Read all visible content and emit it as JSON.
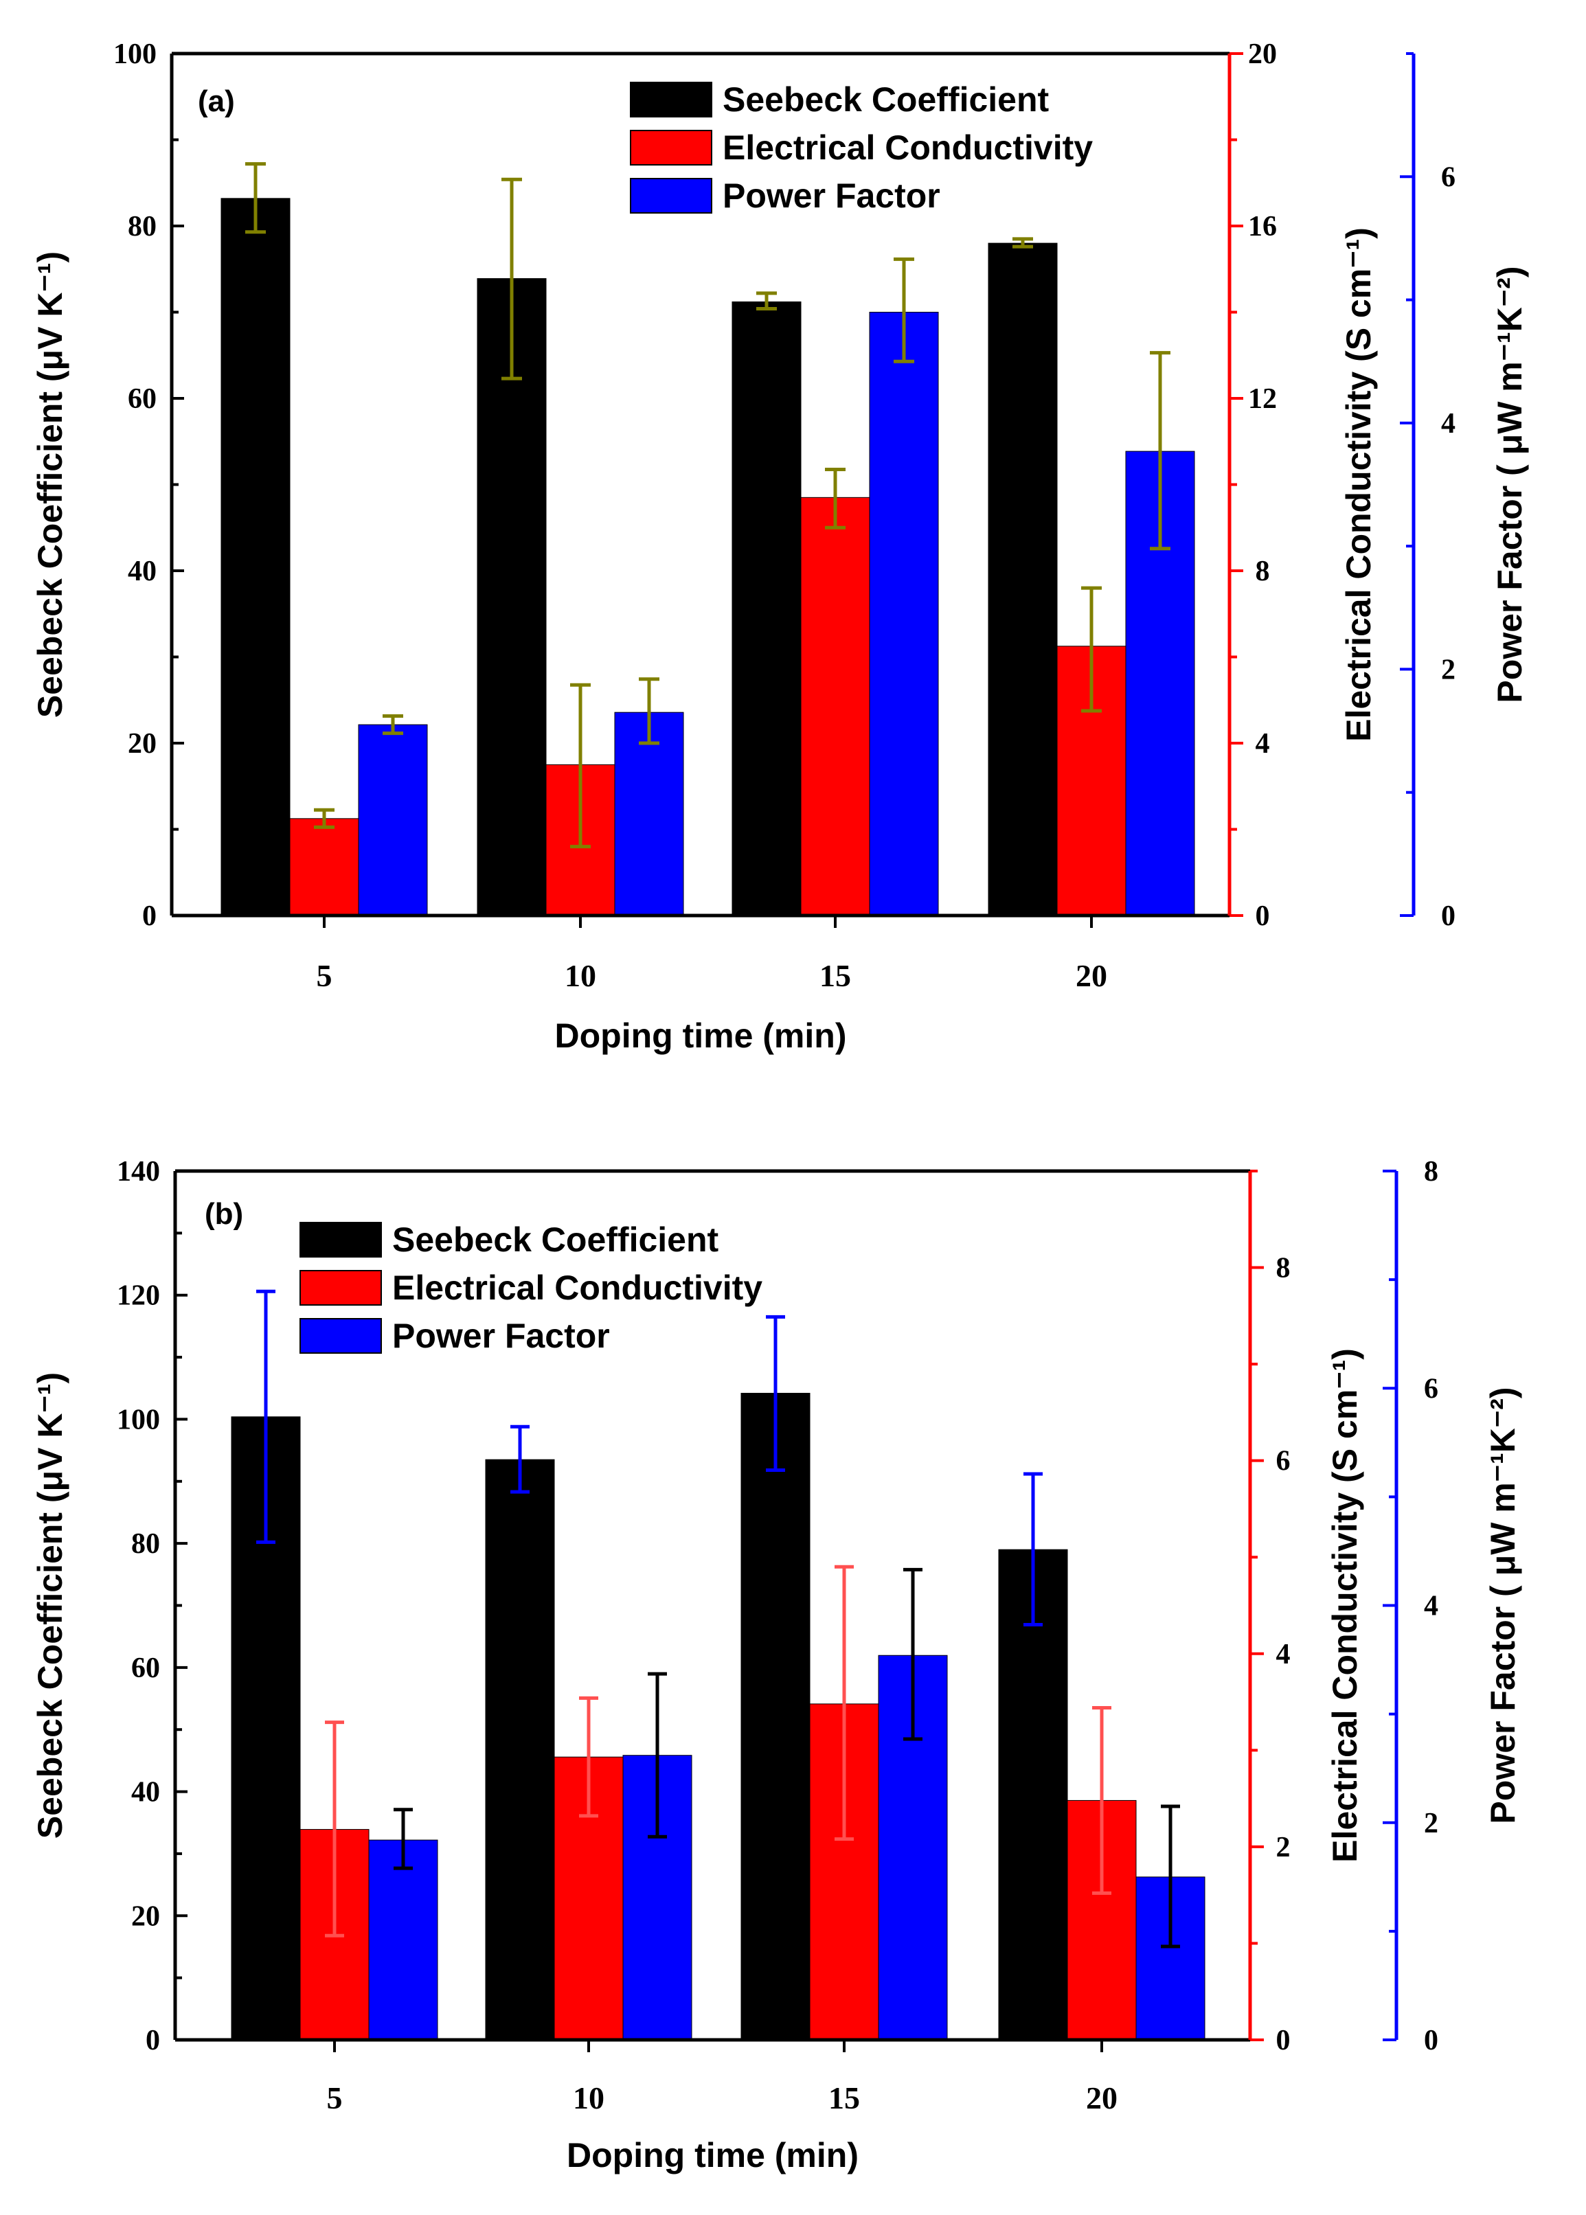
{
  "colors": {
    "seebeck": "#000000",
    "conductivity": "#ff0000",
    "power_factor": "#0000ff",
    "errorbar_a": "#808000",
    "errorbar_b_conductivity": "#ff5050"
  },
  "chart_data": [
    {
      "type": "bar",
      "panel_label": "(a)",
      "xlabel": "Doping time (min)",
      "categories": [
        "5",
        "10",
        "15",
        "20"
      ],
      "legend": [
        "Seebeck Coefficient",
        "Electrical Conductivity",
        "Power Factor"
      ],
      "legend_position": "top-right",
      "axes": {
        "left": {
          "label": "Seebeck Coefficient (μV K⁻¹)",
          "ylim": [
            0,
            100
          ],
          "ticks": [
            0,
            20,
            40,
            60,
            80,
            100
          ],
          "tick_labels": [
            "0",
            "20",
            "40",
            "60",
            "80",
            "100"
          ]
        },
        "right1": {
          "label": "Electrical Conductivity (S cm⁻¹)",
          "ylim": [
            0,
            20
          ],
          "ticks": [
            0,
            4,
            8,
            12,
            16,
            20
          ],
          "tick_labels": [
            "0",
            "4",
            "8",
            "12",
            "16",
            "20"
          ]
        },
        "right2": {
          "label": "Power Factor ( μW m⁻¹K⁻²)",
          "ylim": [
            0,
            7
          ],
          "ticks": [
            0,
            2,
            4,
            6
          ],
          "tick_labels": [
            "0",
            "2",
            "4",
            "6"
          ]
        }
      },
      "series": [
        {
          "name": "Seebeck Coefficient",
          "axis": "left",
          "values": [
            83.2,
            73.9,
            71.2,
            78.0
          ],
          "err_low": [
            79.3,
            62.3,
            70.4,
            77.6
          ],
          "err_high": [
            87.2,
            85.4,
            72.2,
            78.5
          ]
        },
        {
          "name": "Electrical Conductivity",
          "axis": "right1",
          "values": [
            2.25,
            3.5,
            9.7,
            6.25
          ],
          "err_low": [
            2.05,
            1.6,
            9.0,
            4.75
          ],
          "err_high": [
            2.45,
            5.35,
            10.35,
            7.6
          ]
        },
        {
          "name": "Power Factor",
          "axis": "right2",
          "values": [
            1.55,
            1.65,
            4.9,
            3.77
          ],
          "err_low": [
            1.48,
            1.4,
            4.5,
            2.98
          ],
          "err_high": [
            1.62,
            1.92,
            5.33,
            4.57
          ]
        }
      ]
    },
    {
      "type": "bar",
      "panel_label": "(b)",
      "xlabel": "Doping time (min)",
      "categories": [
        "5",
        "10",
        "15",
        "20"
      ],
      "legend": [
        "Seebeck Coefficient",
        "Electrical Conductivity",
        "Power Factor"
      ],
      "legend_position": "top-left",
      "axes": {
        "left": {
          "label": "Seebeck Coefficient (μV K⁻¹)",
          "ylim": [
            0,
            140
          ],
          "ticks": [
            0,
            20,
            40,
            60,
            80,
            100,
            120,
            140
          ],
          "tick_labels": [
            "0",
            "20",
            "40",
            "60",
            "80",
            "100",
            "120",
            "140"
          ]
        },
        "right1": {
          "label": "Electrical Conductivity (S cm⁻¹)",
          "ylim": [
            0,
            9
          ],
          "ticks": [
            0,
            2,
            4,
            6,
            8
          ],
          "tick_labels": [
            "0",
            "2",
            "4",
            "6",
            "8"
          ]
        },
        "right2": {
          "label": "Power Factor ( μW m⁻¹K⁻²)",
          "ylim": [
            0,
            8
          ],
          "ticks": [
            0,
            2,
            4,
            6,
            8
          ],
          "tick_labels": [
            "0",
            "2",
            "4",
            "6",
            "8"
          ]
        }
      },
      "series": [
        {
          "name": "Seebeck Coefficient",
          "axis": "left",
          "values": [
            100.4,
            93.5,
            104.2,
            79.0
          ],
          "err_low": [
            80.2,
            88.3,
            91.8,
            66.9
          ],
          "err_high": [
            120.6,
            98.8,
            116.5,
            91.2
          ]
        },
        {
          "name": "Electrical Conductivity",
          "axis": "right1",
          "values": [
            2.18,
            2.93,
            3.48,
            2.48
          ],
          "err_low": [
            1.08,
            2.32,
            2.08,
            1.52
          ],
          "err_high": [
            3.29,
            3.54,
            4.9,
            3.44
          ]
        },
        {
          "name": "Power Factor",
          "axis": "right2",
          "values": [
            1.84,
            2.62,
            3.54,
            1.5
          ],
          "err_low": [
            1.58,
            1.87,
            2.77,
            0.86
          ],
          "err_high": [
            2.12,
            3.37,
            4.33,
            2.15
          ]
        }
      ]
    }
  ]
}
